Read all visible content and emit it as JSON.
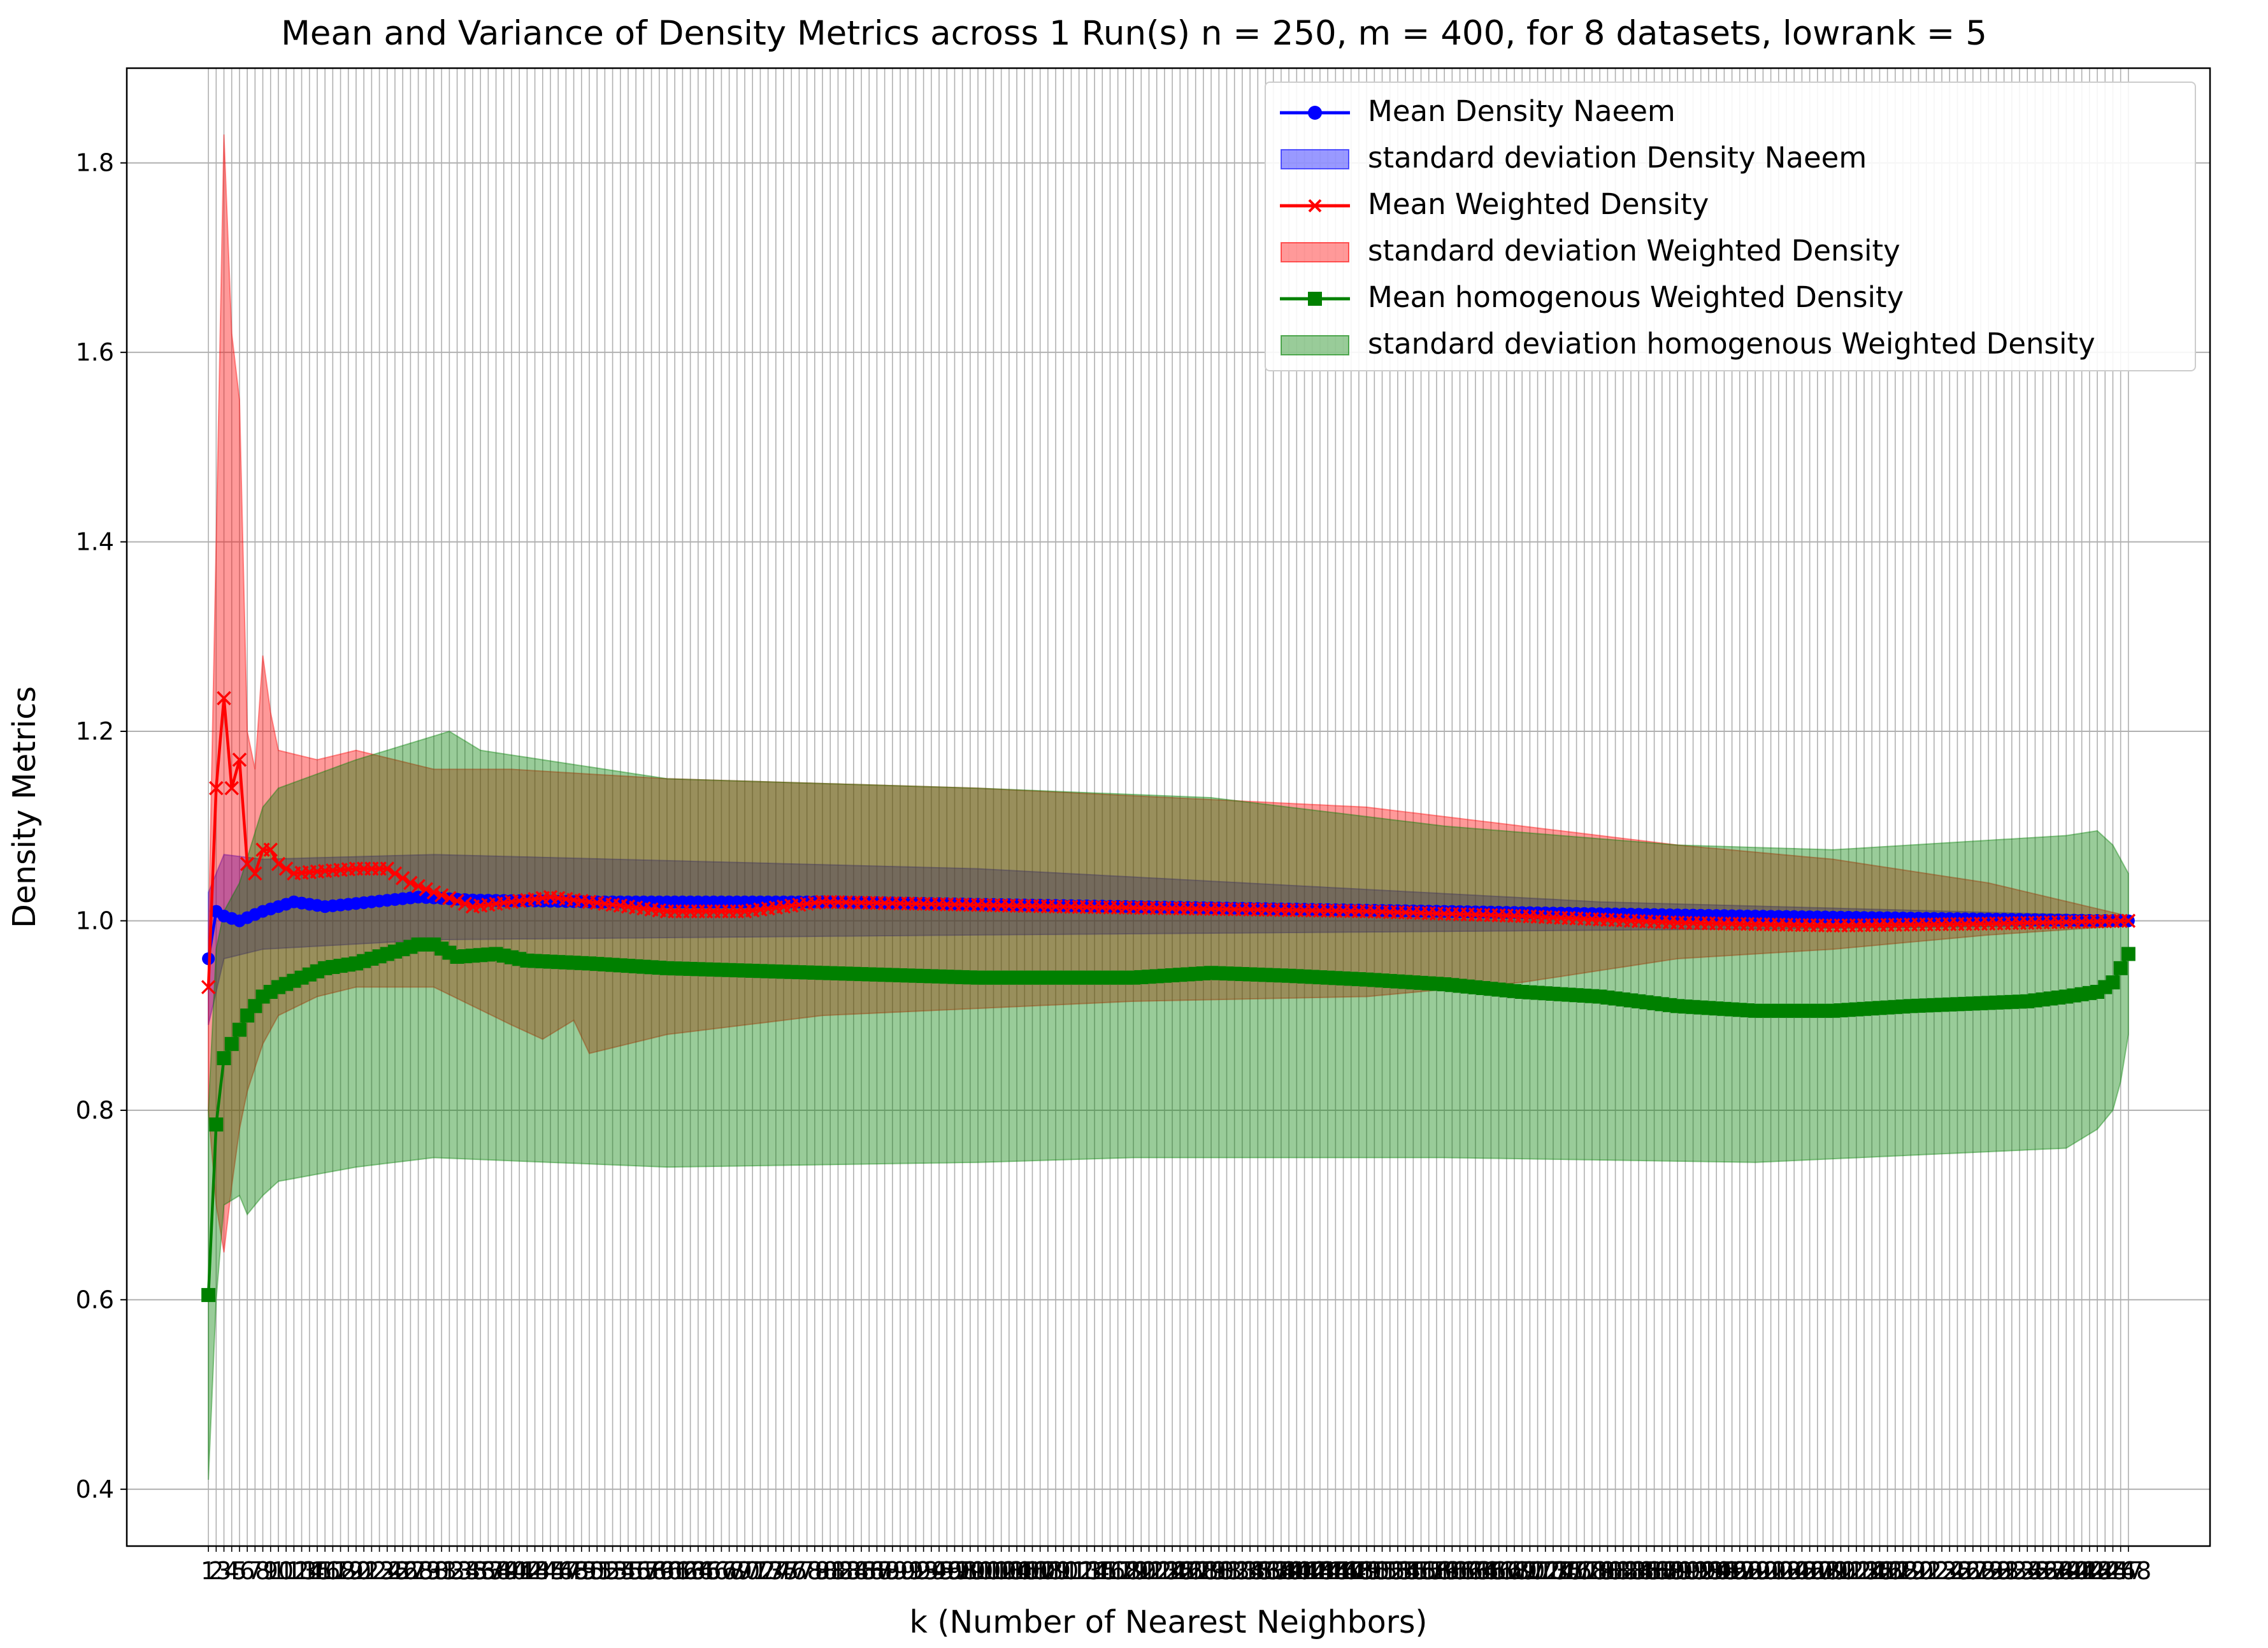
{
  "chart_data": {
    "type": "line",
    "title": "Mean and Variance of Density Metrics across 1 Run(s) n  = 250, m  = 400, for 8 datasets, lowrank = 5",
    "xlabel": "k (Number of Nearest Neighbors)",
    "ylabel": "Density Metrics",
    "x_range": [
      1,
      248
    ],
    "xlim": [
      -9.5,
      258.5
    ],
    "ylim": [
      0.34,
      1.9
    ],
    "yticks": [
      0.4,
      0.6,
      0.8,
      1.0,
      1.2,
      1.4,
      1.6,
      1.8
    ],
    "ytick_labels": [
      "0.4",
      "0.6",
      "0.8",
      "1.0",
      "1.2",
      "1.4",
      "1.6",
      "1.8"
    ],
    "xticks": "every integer k from 1 to 248 (labels overlap)",
    "grid": true,
    "legend_position": "upper right",
    "series": [
      {
        "name": "Mean Density Naeem",
        "color": "#0000ff",
        "marker": "circle",
        "mean": [
          [
            1,
            0.96
          ],
          [
            2,
            1.01
          ],
          [
            3,
            1.005
          ],
          [
            5,
            1.0
          ],
          [
            8,
            1.01
          ],
          [
            12,
            1.02
          ],
          [
            16,
            1.015
          ],
          [
            22,
            1.02
          ],
          [
            28,
            1.025
          ],
          [
            35,
            1.022
          ],
          [
            50,
            1.02
          ],
          [
            80,
            1.02
          ],
          [
            120,
            1.015
          ],
          [
            160,
            1.01
          ],
          [
            200,
            1.005
          ],
          [
            248,
            1.0
          ]
        ]
      },
      {
        "name": "standard deviation Density Naeem",
        "color": "#0000ff",
        "band_of": "Mean Density Naeem",
        "lower": [
          [
            1,
            0.89
          ],
          [
            3,
            0.96
          ],
          [
            8,
            0.97
          ],
          [
            30,
            0.98
          ],
          [
            100,
            0.985
          ],
          [
            180,
            0.99
          ],
          [
            248,
            0.995
          ]
        ],
        "upper": [
          [
            1,
            1.03
          ],
          [
            3,
            1.07
          ],
          [
            8,
            1.065
          ],
          [
            30,
            1.07
          ],
          [
            100,
            1.055
          ],
          [
            180,
            1.02
          ],
          [
            248,
            1.005
          ]
        ]
      },
      {
        "name": "Mean Weighted Density",
        "color": "#ff0000",
        "marker": "x",
        "mean": [
          [
            1,
            0.93
          ],
          [
            2,
            1.14
          ],
          [
            3,
            1.235
          ],
          [
            4,
            1.14
          ],
          [
            5,
            1.17
          ],
          [
            6,
            1.06
          ],
          [
            7,
            1.05
          ],
          [
            8,
            1.075
          ],
          [
            9,
            1.075
          ],
          [
            10,
            1.06
          ],
          [
            12,
            1.05
          ],
          [
            15,
            1.052
          ],
          [
            20,
            1.055
          ],
          [
            24,
            1.055
          ],
          [
            27,
            1.04
          ],
          [
            30,
            1.03
          ],
          [
            35,
            1.015
          ],
          [
            45,
            1.025
          ],
          [
            50,
            1.02
          ],
          [
            60,
            1.01
          ],
          [
            70,
            1.01
          ],
          [
            80,
            1.02
          ],
          [
            110,
            1.015
          ],
          [
            150,
            1.01
          ],
          [
            170,
            1.005
          ],
          [
            190,
            0.998
          ],
          [
            210,
            0.995
          ],
          [
            230,
            0.997
          ],
          [
            248,
            1.0
          ]
        ]
      },
      {
        "name": "standard deviation Weighted Density",
        "color": "#ff0000",
        "band_of": "Mean Weighted Density",
        "lower": [
          [
            1,
            0.8
          ],
          [
            2,
            0.7
          ],
          [
            3,
            0.65
          ],
          [
            4,
            0.72
          ],
          [
            5,
            0.78
          ],
          [
            6,
            0.82
          ],
          [
            8,
            0.87
          ],
          [
            10,
            0.9
          ],
          [
            15,
            0.92
          ],
          [
            20,
            0.93
          ],
          [
            30,
            0.93
          ],
          [
            40,
            0.89
          ],
          [
            44,
            0.875
          ],
          [
            48,
            0.895
          ],
          [
            50,
            0.86
          ],
          [
            60,
            0.88
          ],
          [
            80,
            0.9
          ],
          [
            120,
            0.915
          ],
          [
            150,
            0.92
          ],
          [
            170,
            0.935
          ],
          [
            190,
            0.96
          ],
          [
            210,
            0.97
          ],
          [
            230,
            0.985
          ],
          [
            248,
            0.995
          ]
        ],
        "upper": [
          [
            1,
            0.98
          ],
          [
            2,
            1.4
          ],
          [
            3,
            1.83
          ],
          [
            4,
            1.62
          ],
          [
            5,
            1.55
          ],
          [
            6,
            1.2
          ],
          [
            7,
            1.16
          ],
          [
            8,
            1.28
          ],
          [
            9,
            1.22
          ],
          [
            10,
            1.18
          ],
          [
            15,
            1.17
          ],
          [
            20,
            1.18
          ],
          [
            25,
            1.17
          ],
          [
            30,
            1.16
          ],
          [
            40,
            1.16
          ],
          [
            60,
            1.15
          ],
          [
            100,
            1.14
          ],
          [
            150,
            1.12
          ],
          [
            170,
            1.1
          ],
          [
            190,
            1.08
          ],
          [
            210,
            1.065
          ],
          [
            230,
            1.04
          ],
          [
            248,
            1.005
          ]
        ]
      },
      {
        "name": "Mean homogenous Weighted Density",
        "color": "#008000",
        "marker": "square",
        "mean": [
          [
            1,
            0.605
          ],
          [
            2,
            0.785
          ],
          [
            3,
            0.855
          ],
          [
            4,
            0.87
          ],
          [
            5,
            0.885
          ],
          [
            6,
            0.9
          ],
          [
            7,
            0.91
          ],
          [
            8,
            0.92
          ],
          [
            10,
            0.93
          ],
          [
            13,
            0.94
          ],
          [
            16,
            0.95
          ],
          [
            20,
            0.955
          ],
          [
            24,
            0.965
          ],
          [
            28,
            0.975
          ],
          [
            30,
            0.975
          ],
          [
            33,
            0.962
          ],
          [
            38,
            0.965
          ],
          [
            42,
            0.958
          ],
          [
            50,
            0.955
          ],
          [
            60,
            0.95
          ],
          [
            80,
            0.945
          ],
          [
            100,
            0.94
          ],
          [
            120,
            0.94
          ],
          [
            130,
            0.945
          ],
          [
            140,
            0.942
          ],
          [
            150,
            0.938
          ],
          [
            160,
            0.933
          ],
          [
            170,
            0.925
          ],
          [
            180,
            0.92
          ],
          [
            190,
            0.91
          ],
          [
            200,
            0.905
          ],
          [
            210,
            0.905
          ],
          [
            220,
            0.91
          ],
          [
            235,
            0.915
          ],
          [
            240,
            0.92
          ],
          [
            244,
            0.925
          ],
          [
            246,
            0.935
          ],
          [
            247,
            0.95
          ],
          [
            248,
            0.965
          ]
        ]
      },
      {
        "name": "standard deviation homogenous Weighted Density",
        "color": "#008000",
        "band_of": "Mean homogenous Weighted Density",
        "lower": [
          [
            1,
            0.41
          ],
          [
            2,
            0.6
          ],
          [
            3,
            0.7
          ],
          [
            5,
            0.71
          ],
          [
            6,
            0.69
          ],
          [
            8,
            0.71
          ],
          [
            10,
            0.725
          ],
          [
            20,
            0.74
          ],
          [
            30,
            0.75
          ],
          [
            60,
            0.74
          ],
          [
            100,
            0.745
          ],
          [
            120,
            0.75
          ],
          [
            160,
            0.75
          ],
          [
            200,
            0.745
          ],
          [
            240,
            0.76
          ],
          [
            244,
            0.78
          ],
          [
            246,
            0.8
          ],
          [
            247,
            0.83
          ],
          [
            248,
            0.88
          ]
        ],
        "upper": [
          [
            1,
            0.8
          ],
          [
            2,
            0.97
          ],
          [
            3,
            1.01
          ],
          [
            5,
            1.04
          ],
          [
            8,
            1.12
          ],
          [
            10,
            1.14
          ],
          [
            20,
            1.17
          ],
          [
            28,
            1.19
          ],
          [
            32,
            1.2
          ],
          [
            36,
            1.18
          ],
          [
            40,
            1.175
          ],
          [
            60,
            1.15
          ],
          [
            100,
            1.14
          ],
          [
            130,
            1.13
          ],
          [
            160,
            1.1
          ],
          [
            190,
            1.08
          ],
          [
            210,
            1.075
          ],
          [
            240,
            1.09
          ],
          [
            244,
            1.095
          ],
          [
            246,
            1.08
          ],
          [
            248,
            1.05
          ]
        ]
      }
    ]
  }
}
